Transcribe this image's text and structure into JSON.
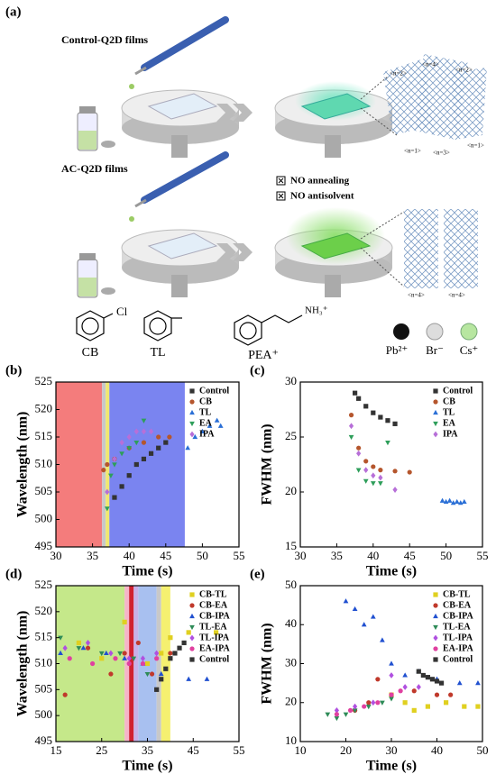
{
  "schematic": {
    "panel": "(a)",
    "control_title": "Control-Q2D films",
    "ac_title": "AC-Q2D films",
    "checks": [
      "NO annealing",
      "NO antisolvent"
    ],
    "control_phases": [
      "<n=2>",
      "<n=4>",
      "<n=2>",
      "<n=1>",
      "<n=3>",
      "<n=1>"
    ],
    "ac_phases": [
      "<n=4>",
      "<n=4>"
    ],
    "molecules": [
      "CB",
      "TL",
      "PEA⁺"
    ],
    "chloro": "Cl",
    "ammonium": "NH₃⁺",
    "ions": [
      "Pb²⁺",
      "Br⁻",
      "Cs⁺"
    ]
  },
  "chart_data": [
    {
      "type": "scatter",
      "panel": "(b)",
      "xlabel": "Time (s)",
      "ylabel": "Wavelength (nm)",
      "xlim": [
        30,
        55
      ],
      "xticks": [
        30,
        35,
        40,
        45,
        50,
        55
      ],
      "ylim": [
        495,
        525
      ],
      "yticks": [
        495,
        500,
        505,
        510,
        515,
        520,
        525
      ],
      "regions": [
        {
          "from": 30,
          "to": 36.3,
          "color": "#f47c7c"
        },
        {
          "from": 36.3,
          "to": 36.8,
          "color": "#c8c8c8"
        },
        {
          "from": 36.8,
          "to": 37.3,
          "color": "#f0e870"
        },
        {
          "from": 37.3,
          "to": 47.6,
          "color": "#7a84f0"
        }
      ],
      "legend": "upper right",
      "series": [
        {
          "name": "Control",
          "color": "#333333",
          "marker": "square",
          "x": [
            38,
            39,
            40,
            41,
            42,
            43,
            44,
            45
          ],
          "values": [
            504,
            506,
            508,
            510,
            511,
            512,
            513,
            514
          ]
        },
        {
          "name": "CB",
          "color": "#b5562d",
          "marker": "circle",
          "x": [
            36.5,
            37,
            38,
            40,
            42,
            44,
            45.5
          ],
          "values": [
            509,
            510,
            511,
            513,
            514,
            515,
            515
          ]
        },
        {
          "name": "TL",
          "color": "#2a6fd6",
          "marker": "triangle",
          "x": [
            48,
            49,
            50,
            51,
            52,
            52.5
          ],
          "values": [
            513,
            515,
            516,
            517,
            518,
            517
          ]
        },
        {
          "name": "EA",
          "color": "#2e9e5a",
          "marker": "triangle-down",
          "x": [
            37,
            37.5,
            38,
            39,
            40,
            41,
            42
          ],
          "values": [
            502,
            508,
            510,
            512,
            513,
            514,
            518
          ]
        },
        {
          "name": "IPA",
          "color": "#b76fd8",
          "marker": "diamond",
          "x": [
            37,
            38,
            39,
            40,
            41,
            42,
            43
          ],
          "values": [
            505,
            511,
            514,
            515,
            516,
            516,
            516
          ]
        }
      ]
    },
    {
      "type": "scatter",
      "panel": "(c)",
      "xlabel": "Time (s)",
      "ylabel": "FWHM (nm)",
      "xlim": [
        30,
        55
      ],
      "xticks": [
        30,
        35,
        40,
        45,
        50,
        55
      ],
      "ylim": [
        15,
        30
      ],
      "yticks": [
        15,
        20,
        25,
        30
      ],
      "regions": [],
      "legend": "upper right",
      "series": [
        {
          "name": "Control",
          "color": "#333333",
          "marker": "square",
          "x": [
            37.5,
            38,
            39,
            40,
            41,
            42,
            43
          ],
          "values": [
            29,
            28.5,
            27.8,
            27.2,
            26.8,
            26.5,
            26.2
          ]
        },
        {
          "name": "CB",
          "color": "#b5562d",
          "marker": "circle",
          "x": [
            37,
            38,
            39,
            40,
            41,
            43,
            45
          ],
          "values": [
            27,
            24,
            22.8,
            22.3,
            22,
            21.9,
            21.8
          ]
        },
        {
          "name": "TL",
          "color": "#2a6fd6",
          "marker": "triangle",
          "x": [
            49.5,
            50,
            50.5,
            51,
            51.5,
            52,
            52.5
          ],
          "values": [
            19.2,
            19.1,
            19.2,
            19,
            19.1,
            19,
            19.1
          ]
        },
        {
          "name": "EA",
          "color": "#2e9e5a",
          "marker": "triangle-down",
          "x": [
            37,
            38,
            39,
            40,
            41,
            42
          ],
          "values": [
            25,
            22,
            21,
            20.8,
            20.8,
            24.5
          ]
        },
        {
          "name": "IPA",
          "color": "#b76fd8",
          "marker": "diamond",
          "x": [
            37,
            38,
            39,
            40,
            41,
            43
          ],
          "values": [
            26,
            23.5,
            22,
            21.5,
            21.3,
            20.2
          ]
        }
      ]
    },
    {
      "type": "scatter",
      "panel": "(d)",
      "xlabel": "Time (s)",
      "ylabel": "Wavelength (nm)",
      "xlim": [
        15,
        55
      ],
      "xticks": [
        15,
        25,
        35,
        45,
        55
      ],
      "ylim": [
        495,
        525
      ],
      "yticks": [
        495,
        500,
        505,
        510,
        515,
        520,
        525
      ],
      "regions": [
        {
          "from": 15,
          "to": 30,
          "color": "#c5e88a"
        },
        {
          "from": 30,
          "to": 31,
          "color": "#f5b5c8"
        },
        {
          "from": 31,
          "to": 32,
          "color": "#d02030"
        },
        {
          "from": 32,
          "to": 33,
          "color": "#c8b0e8"
        },
        {
          "from": 33,
          "to": 37,
          "color": "#a8c0f0"
        },
        {
          "from": 37,
          "to": 38,
          "color": "#c8c8c8"
        },
        {
          "from": 38,
          "to": 40,
          "color": "#f5f070"
        }
      ],
      "legend": "upper right",
      "series": [
        {
          "name": "CB-TL",
          "color": "#e0d020",
          "marker": "square",
          "x": [
            20,
            25,
            30,
            35,
            38,
            40,
            44,
            50
          ],
          "values": [
            514,
            511,
            518,
            510,
            512,
            515,
            516,
            516
          ]
        },
        {
          "name": "CB-EA",
          "color": "#c0392b",
          "marker": "circle",
          "x": [
            17,
            22,
            27,
            30,
            33,
            36,
            40
          ],
          "values": [
            504,
            513,
            508,
            512,
            514,
            508,
            512
          ]
        },
        {
          "name": "CB-IPA",
          "color": "#2050d0",
          "marker": "triangle",
          "x": [
            16,
            21,
            26,
            30,
            34,
            38,
            44,
            48
          ],
          "values": [
            512,
            513,
            512,
            511,
            510,
            508,
            507,
            507
          ]
        },
        {
          "name": "TL-EA",
          "color": "#2e8b57",
          "marker": "triangle-down",
          "x": [
            16,
            20,
            25,
            29,
            32,
            35
          ],
          "values": [
            515,
            513,
            512,
            512,
            511,
            508
          ]
        },
        {
          "name": "TL-IPA",
          "color": "#b050e0",
          "marker": "diamond",
          "x": [
            17,
            22,
            27,
            31,
            34,
            37
          ],
          "values": [
            513,
            514,
            512,
            511,
            511,
            512
          ]
        },
        {
          "name": "EA-IPA",
          "color": "#e040a0",
          "marker": "circle",
          "x": [
            18,
            23,
            28,
            31,
            34,
            37
          ],
          "values": [
            511,
            510,
            511,
            510,
            510,
            511
          ]
        },
        {
          "name": "Control",
          "color": "#333333",
          "marker": "square",
          "x": [
            37,
            38,
            39,
            40,
            41,
            42,
            43
          ],
          "values": [
            505,
            507,
            509,
            511,
            512,
            513,
            514
          ]
        }
      ]
    },
    {
      "type": "scatter",
      "panel": "(e)",
      "xlabel": "Time (s)",
      "ylabel": "FWHM (nm)",
      "xlim": [
        10,
        50
      ],
      "xticks": [
        10,
        20,
        30,
        40,
        50
      ],
      "ylim": [
        10,
        50
      ],
      "yticks": [
        10,
        20,
        30,
        40,
        50
      ],
      "regions": [],
      "legend": "upper right",
      "series": [
        {
          "name": "CB-TL",
          "color": "#e0d020",
          "marker": "square",
          "x": [
            30,
            33,
            35,
            38,
            42,
            46,
            49
          ],
          "values": [
            22,
            20,
            18,
            19,
            20,
            19,
            19
          ]
        },
        {
          "name": "CB-EA",
          "color": "#c0392b",
          "marker": "circle",
          "x": [
            22,
            25,
            27,
            30,
            35,
            40,
            43
          ],
          "values": [
            18,
            20,
            26,
            22,
            23,
            22,
            22
          ]
        },
        {
          "name": "CB-IPA",
          "color": "#2050d0",
          "marker": "triangle",
          "x": [
            20,
            22,
            24,
            26,
            28,
            30,
            33,
            36,
            40,
            45,
            49
          ],
          "values": [
            46,
            44,
            40,
            42,
            36,
            30,
            27,
            28,
            26,
            25,
            25
          ]
        },
        {
          "name": "TL-EA",
          "color": "#2e8b57",
          "marker": "triangle-down",
          "x": [
            16,
            18,
            20,
            22,
            25,
            28,
            30
          ],
          "values": [
            17,
            16,
            17,
            18,
            19,
            20,
            21
          ]
        },
        {
          "name": "TL-IPA",
          "color": "#b050e0",
          "marker": "diamond",
          "x": [
            18,
            22,
            26,
            30,
            33,
            36
          ],
          "values": [
            18,
            19,
            20,
            27,
            24,
            24
          ]
        },
        {
          "name": "EA-IPA",
          "color": "#e040a0",
          "marker": "circle",
          "x": [
            18,
            21,
            24,
            27,
            30,
            32
          ],
          "values": [
            17,
            18,
            19,
            20,
            22,
            23
          ]
        },
        {
          "name": "Control",
          "color": "#333333",
          "marker": "square",
          "x": [
            36,
            37,
            38,
            39,
            40,
            41
          ],
          "values": [
            28,
            27,
            26.5,
            26,
            25.5,
            25
          ]
        }
      ]
    }
  ]
}
